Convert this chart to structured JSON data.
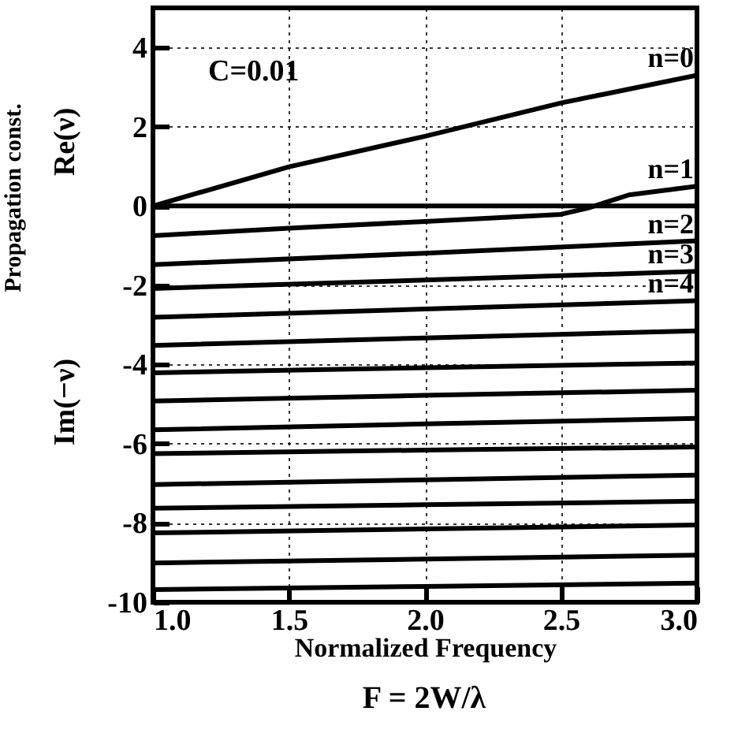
{
  "chart_data": {
    "type": "line",
    "xlabel": "Normalized Frequency",
    "ylabel": "Propagation const.",
    "annotations": [
      "C=0.01",
      "Re(ν)",
      "Im(−ν)",
      "F = 2W/λ"
    ],
    "x": [
      1.0,
      2.0,
      3.0
    ],
    "series": [
      {
        "name": "n=0",
        "color": "#000000",
        "x": [
          1.0,
          1.5,
          2.0,
          2.5,
          3.0
        ],
        "values": [
          0,
          0.99,
          1.76,
          2.6,
          3.3
        ]
      },
      {
        "name": "n=1",
        "color": "#000000",
        "x": [
          1.0,
          1.5,
          2.0,
          2.5,
          2.6,
          2.75,
          3.0
        ],
        "values": [
          -0.75,
          -0.56,
          -0.39,
          -0.21,
          -0.05,
          0.28,
          0.5
        ]
      },
      {
        "name": "n=2",
        "color": "#000000",
        "values": [
          -1.48,
          -1.19,
          -0.88
        ]
      },
      {
        "name": "n=3",
        "color": "#000000",
        "values": [
          -2.08,
          -1.87,
          -1.65
        ]
      },
      {
        "name": "n=4",
        "color": "#000000",
        "values": [
          -2.81,
          -2.6,
          -2.39
        ]
      },
      {
        "color": "#000000",
        "values": [
          -3.52,
          -3.33,
          -3.15
        ]
      },
      {
        "color": "#000000",
        "values": [
          -4.21,
          -4.08,
          -3.96
        ]
      },
      {
        "color": "#000000",
        "values": [
          -4.92,
          -4.78,
          -4.65
        ]
      },
      {
        "color": "#000000",
        "values": [
          -5.65,
          -5.5,
          -5.36
        ]
      },
      {
        "color": "#000000",
        "values": [
          -6.25,
          -6.16,
          -6.08
        ]
      },
      {
        "color": "#000000",
        "values": [
          -7.03,
          -6.91,
          -6.79
        ]
      },
      {
        "color": "#000000",
        "values": [
          -7.63,
          -7.54,
          -7.45
        ]
      },
      {
        "color": "#000000",
        "values": [
          -8.25,
          -8.15,
          -8.05
        ]
      },
      {
        "color": "#000000",
        "values": [
          -9.01,
          -8.91,
          -8.81
        ]
      },
      {
        "color": "#000000",
        "values": [
          -9.68,
          -9.6,
          -9.52
        ]
      }
    ],
    "xlim": [
      1.0,
      3.0
    ],
    "xticks": [
      {
        "value": 1.0,
        "label": "1.0"
      },
      1.5,
      {
        "value": 2.0,
        "label": "2.0"
      },
      2.5,
      {
        "value": 3.0,
        "label": "3.0"
      }
    ],
    "ylim": [
      -10,
      5
    ],
    "yticks": [
      -10,
      -8,
      -6,
      -4,
      -2,
      0,
      2,
      4
    ],
    "ref_lines": [
      {
        "axis": "y",
        "value": 0
      }
    ],
    "grid": true,
    "line_style": "solid",
    "marker": "none"
  }
}
